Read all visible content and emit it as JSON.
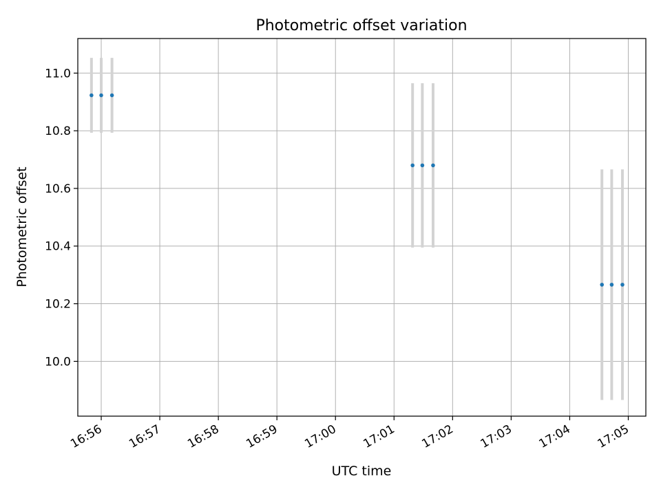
{
  "chart_data": {
    "type": "scatter",
    "title": "Photometric offset variation",
    "xlabel": "UTC time",
    "ylabel": "Photometric offset",
    "xlim": [
      "16:55:36",
      "17:05:18"
    ],
    "ylim": [
      9.81,
      11.12
    ],
    "grid": true,
    "x_ticks": [
      "16:56",
      "16:57",
      "16:58",
      "16:59",
      "17:00",
      "17:01",
      "17:02",
      "17:03",
      "17:04",
      "17:05"
    ],
    "y_ticks": [
      "10.0",
      "10.2",
      "10.4",
      "10.6",
      "10.8",
      "11.0"
    ],
    "x_tick_rotation": 30,
    "series": [
      {
        "color": "#1f77b4",
        "errorbar_color": "#d3d3d3",
        "points": [
          {
            "x": "16:55:50",
            "y": 10.923,
            "yerr": 0.13
          },
          {
            "x": "16:56:00",
            "y": 10.923,
            "yerr": 0.13
          },
          {
            "x": "16:56:11",
            "y": 10.923,
            "yerr": 0.13
          },
          {
            "x": "17:01:19",
            "y": 10.68,
            "yerr": 0.285
          },
          {
            "x": "17:01:29",
            "y": 10.68,
            "yerr": 0.285
          },
          {
            "x": "17:01:40",
            "y": 10.68,
            "yerr": 0.285
          },
          {
            "x": "17:04:33",
            "y": 10.266,
            "yerr": 0.4
          },
          {
            "x": "17:04:43",
            "y": 10.266,
            "yerr": 0.4
          },
          {
            "x": "17:04:54",
            "y": 10.266,
            "yerr": 0.4
          }
        ]
      }
    ]
  }
}
